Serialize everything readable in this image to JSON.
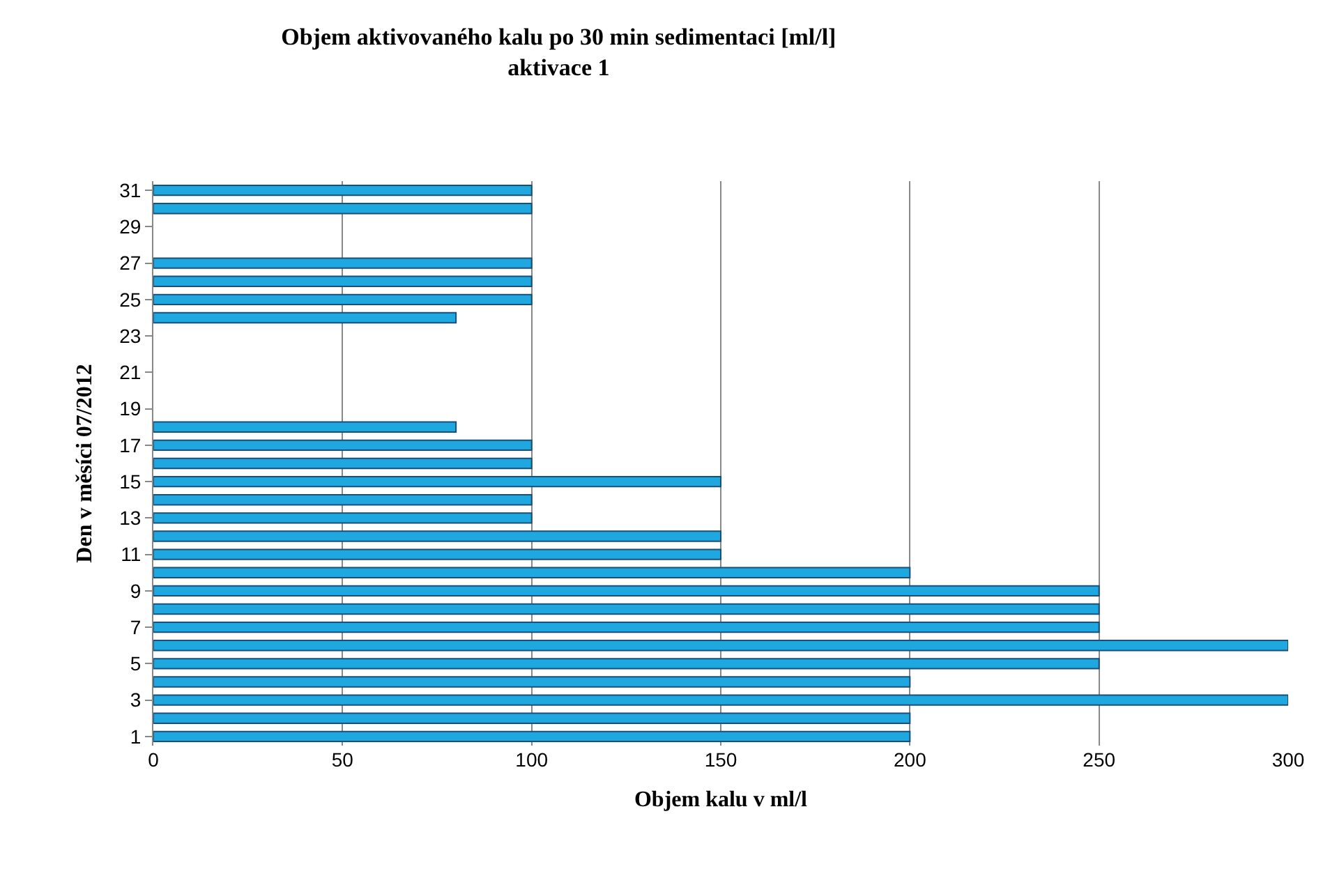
{
  "chart_data": {
    "type": "bar",
    "orientation": "horizontal",
    "title": "Objem aktivovaného kalu po 30 min sedimentaci [ml/l]",
    "subtitle": "aktivace 1",
    "xlabel": "Objem kalu v ml/l",
    "ylabel": "Den v měsíci 07/2012",
    "categories": [
      "31",
      null,
      "29",
      null,
      "27",
      null,
      "25",
      null,
      "23",
      null,
      "21",
      null,
      "19",
      null,
      "17",
      null,
      "15",
      null,
      "13",
      null,
      "11",
      null,
      "9",
      null,
      "7",
      null,
      "5",
      null,
      "3",
      null,
      "1"
    ],
    "values": [
      100,
      100,
      null,
      null,
      100,
      100,
      100,
      80,
      null,
      null,
      null,
      null,
      null,
      80,
      100,
      100,
      150,
      100,
      100,
      150,
      150,
      200,
      250,
      250,
      250,
      300,
      250,
      200,
      300,
      200,
      200
    ],
    "color": "#1fa8e0",
    "xlim": [
      0,
      300
    ],
    "xticks": [
      0,
      50,
      100,
      150,
      200,
      250,
      300
    ],
    "grid": "x",
    "legend": false
  }
}
